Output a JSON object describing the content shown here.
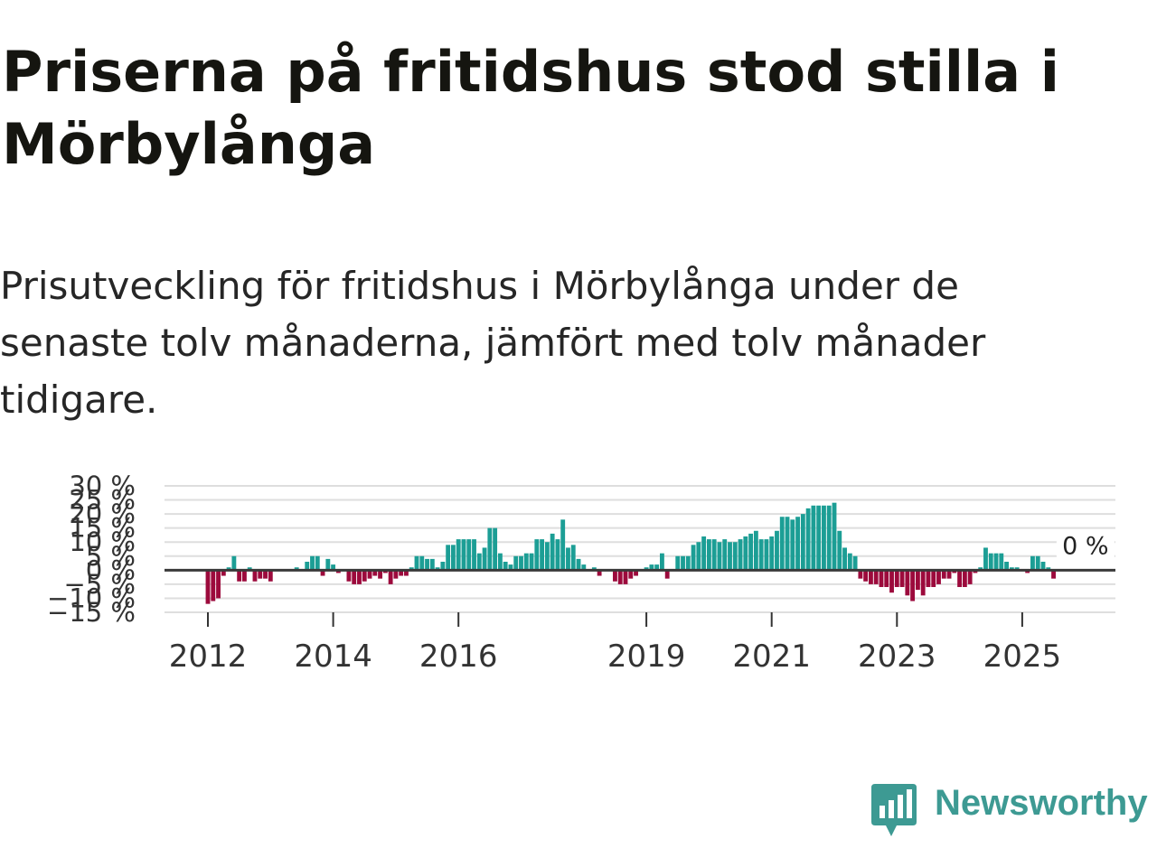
{
  "header": {
    "title": "Priserna på fritidshus stod stilla i Mörbylånga",
    "subtitle": "Prisutveckling för fritidshus i Mörbylånga under de senaste tolv månaderna, jämfört med tolv månader tidigare."
  },
  "brand": {
    "name": "Newsworthy",
    "color": "#3d9a93",
    "icon": "bar-chart-speech-bubble-icon"
  },
  "chart_data": {
    "type": "bar",
    "x_unit": "month",
    "x_start": "2012-01",
    "x_end": "2025-12",
    "ylim": [
      -15,
      30
    ],
    "yticks": [
      -15,
      -10,
      -5,
      0,
      5,
      10,
      15,
      20,
      25,
      30
    ],
    "ytick_labels": [
      "−15 %",
      "−10 %",
      "−5 %",
      "0 %",
      "5 %",
      "10 %",
      "15 %",
      "20 %",
      "25 %",
      "30 %"
    ],
    "xticks": [
      {
        "label": "2012",
        "x": "2012-01"
      },
      {
        "label": "2014",
        "x": "2014-01"
      },
      {
        "label": "2016",
        "x": "2016-01"
      },
      {
        "label": "2019",
        "x": "2019-01"
      },
      {
        "label": "2021",
        "x": "2021-01"
      },
      {
        "label": "2023",
        "x": "2023-01"
      },
      {
        "label": "2025",
        "x": "2025-01"
      }
    ],
    "grid": true,
    "positive_color": "#1c9e95",
    "negative_color": "#9c0a3c",
    "annotation": {
      "text": "0 %",
      "x": "2025-10",
      "y": 0
    },
    "series": [
      {
        "start": "2012-01",
        "values": [
          -12,
          -11,
          -10,
          -2,
          1,
          5,
          -4,
          -4,
          1,
          -4,
          -3,
          -3,
          -4,
          0,
          0,
          0,
          0,
          1,
          0,
          3,
          5,
          5,
          -2,
          4,
          2,
          -1,
          0,
          -4,
          -5,
          -5,
          -4,
          -3,
          -2,
          -3,
          -1,
          -5,
          -3,
          -2,
          -2,
          1,
          5,
          5,
          4,
          4,
          1,
          3,
          9,
          9,
          11,
          11,
          11,
          11,
          6,
          8,
          15,
          15,
          6,
          3,
          2,
          5,
          5,
          6,
          6,
          11,
          11,
          10,
          13,
          11,
          18,
          8,
          9,
          4,
          2,
          0,
          1,
          -2,
          0,
          0,
          -4,
          -5,
          -5,
          -3,
          -2,
          0,
          1,
          2,
          2,
          6,
          -3,
          0,
          5,
          5,
          5,
          9,
          10,
          12,
          11,
          11,
          10,
          11,
          10,
          10,
          11,
          12,
          13,
          14,
          11,
          11,
          12,
          14,
          19,
          19,
          18,
          19,
          20,
          22,
          23,
          23,
          23,
          23,
          24,
          14,
          8,
          6,
          5,
          -3,
          -4,
          -5,
          -5,
          -6,
          -6,
          -8,
          -6,
          -6,
          -9,
          -11,
          -7,
          -9,
          -6,
          -6,
          -5,
          -3,
          -3,
          -1,
          -6,
          -6,
          -5,
          -1,
          1,
          8,
          6,
          6,
          6,
          3,
          1,
          1,
          0,
          -1,
          5,
          5,
          3,
          1,
          -3,
          0,
          0,
          0
        ]
      }
    ]
  }
}
